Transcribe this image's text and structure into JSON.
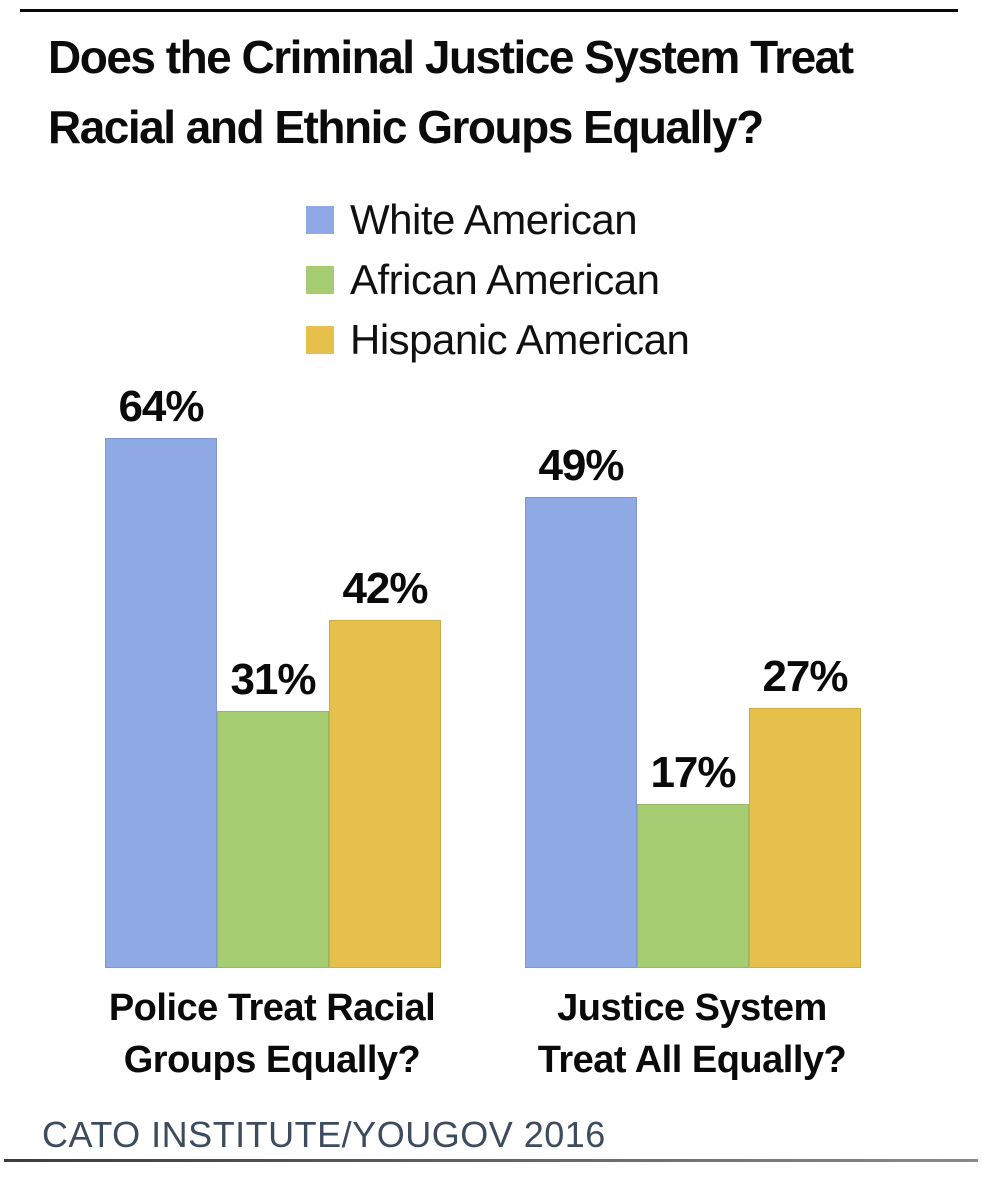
{
  "page": {
    "title_line1": "Does the Criminal Justice System Treat",
    "title_line2": "Racial and Ethnic Groups Equally?",
    "source": "CATO INSTITUTE/YOUGOV 2016"
  },
  "colors": {
    "white_american": "#8FA9E4",
    "african_american": "#A7CD72",
    "hispanic_american": "#E5C14B",
    "source_text": "#3D4B5E",
    "title_text": "#0B0B0B"
  },
  "legend": {
    "items": [
      {
        "label": "White American",
        "color": "#8FA9E4"
      },
      {
        "label": "African American",
        "color": "#A7CD72"
      },
      {
        "label": "Hispanic American",
        "color": "#E5C14B"
      }
    ]
  },
  "chart_data": {
    "type": "bar",
    "title": "Does the Criminal Justice System Treat Racial and Ethnic Groups Equally?",
    "categories": [
      "Police Treat Racial Groups Equally?",
      "Justice System Treat All Equally?"
    ],
    "series": [
      {
        "name": "White American",
        "color": "#8FA9E4",
        "values": [
          64,
          49
        ]
      },
      {
        "name": "African American",
        "color": "#A7CD72",
        "values": [
          31,
          17
        ]
      },
      {
        "name": "Hispanic American",
        "color": "#E5C14B",
        "values": [
          42,
          27
        ]
      }
    ],
    "unit": "%",
    "value_label_format": "percent",
    "grid": false,
    "axes_shown": false,
    "legend_position": "top-center",
    "source": "CATO INSTITUTE/YOUGOV 2016"
  },
  "groups": [
    {
      "label_line1": "Police Treat Racial",
      "label_line2": "Groups Equally?",
      "bars": [
        {
          "series": "White American",
          "value": 64,
          "label": "64%"
        },
        {
          "series": "African American",
          "value": 31,
          "label": "31%"
        },
        {
          "series": "Hispanic American",
          "value": 42,
          "label": "42%"
        }
      ]
    },
    {
      "label_line1": "Justice System",
      "label_line2": "Treat All Equally?",
      "bars": [
        {
          "series": "White American",
          "value": 49,
          "label": "49%"
        },
        {
          "series": "African American",
          "value": 17,
          "label": "17%"
        },
        {
          "series": "Hispanic American",
          "value": 27,
          "label": "27%"
        }
      ]
    }
  ]
}
